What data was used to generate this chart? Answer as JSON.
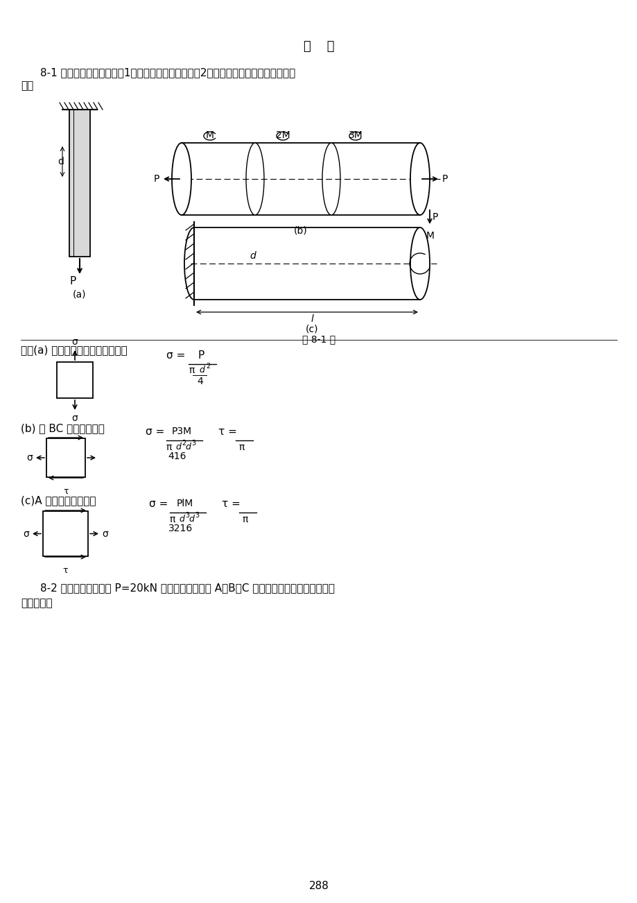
{
  "title": "习    题",
  "page_number": "288",
  "bg": "#ffffff",
  "p81_line1": "8-1 构件受力如图所示。（1）确定危险点的位置；（2）用单元体表示危险点的应力状",
  "p81_line2": "态。",
  "sol_a_text": "解：(a) 在任意横截面上，任意一点",
  "sol_b_text": "(b) 在 BC 段的外表面处",
  "sol_c_text": "(c)A 截面的最上面一点",
  "fig_cap": "题 8-1 图",
  "p82_line1": "8-2 图示悬臂棁受载荷 P=20kN 作用，试绘单元体 A、B、C 的应力图，并确定主应力的大",
  "p82_line2": "小及方位。"
}
